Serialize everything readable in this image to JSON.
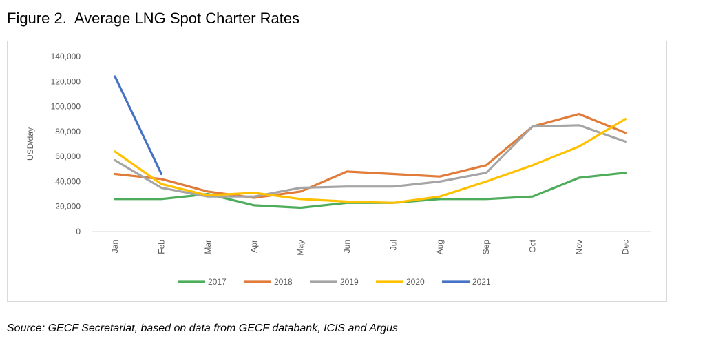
{
  "figure": {
    "title": "Figure 2.  Average LNG Spot Charter Rates",
    "source": "Source: GECF Secretariat, based on data from GECF databank, ICIS and Argus"
  },
  "chart_data": {
    "type": "line",
    "title": "",
    "xlabel": "",
    "ylabel": "USD/day",
    "ylim": [
      0,
      140000
    ],
    "yticks": [
      0,
      20000,
      40000,
      60000,
      80000,
      100000,
      120000,
      140000
    ],
    "ytick_labels": [
      "0",
      "20,000",
      "40,000",
      "60,000",
      "80,000",
      "100,000",
      "120,000",
      "140,000"
    ],
    "categories": [
      "Jan",
      "Feb",
      "Mar",
      "Apr",
      "May",
      "Jun",
      "Jul",
      "Aug",
      "Sep",
      "Oct",
      "Nov",
      "Dec"
    ],
    "grid": false,
    "legend_position": "bottom",
    "series": [
      {
        "name": "2017",
        "color": "#4EAD5B",
        "values": [
          26000,
          26000,
          30000,
          21000,
          19000,
          23000,
          23000,
          26000,
          26000,
          28000,
          43000,
          47000
        ]
      },
      {
        "name": "2018",
        "color": "#E07B39",
        "values": [
          46000,
          42000,
          32000,
          27000,
          32000,
          48000,
          46000,
          44000,
          53000,
          84000,
          94000,
          79000
        ]
      },
      {
        "name": "2019",
        "color": "#A5A5A5",
        "values": [
          57000,
          35000,
          28000,
          28000,
          35000,
          36000,
          36000,
          40000,
          47000,
          84000,
          85000,
          72000
        ]
      },
      {
        "name": "2020",
        "color": "#FFC000",
        "values": [
          64000,
          38000,
          29000,
          31000,
          26000,
          24000,
          23000,
          28000,
          40000,
          53000,
          68000,
          90000
        ]
      },
      {
        "name": "2021",
        "color": "#4472C4",
        "values": [
          124000,
          46000,
          null,
          null,
          null,
          null,
          null,
          null,
          null,
          null,
          null,
          null
        ]
      }
    ]
  }
}
